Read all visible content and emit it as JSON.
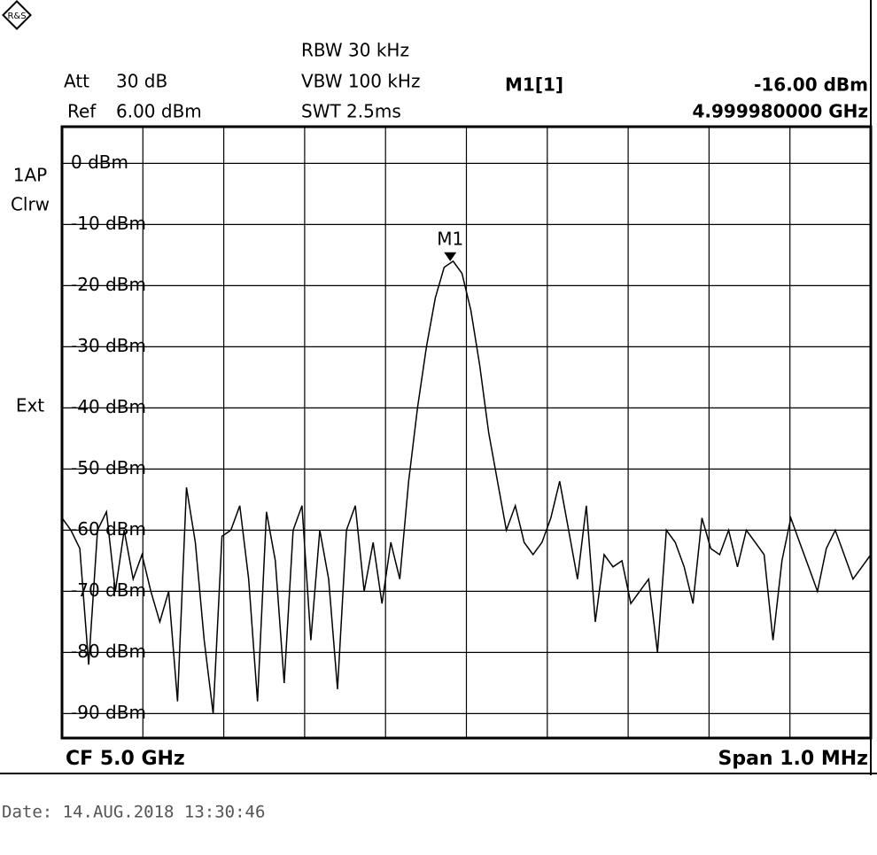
{
  "chart_data": {
    "type": "line",
    "settings": {
      "att_label": "Att",
      "att": "30 dB",
      "ref_label": "Ref",
      "ref": "6.00 dBm",
      "rbw": "RBW 30 kHz",
      "vbw": "VBW 100 kHz",
      "swt": "SWT 2.5ms",
      "trace_mode": "1AP",
      "trace_clear": "Clrw",
      "trigger": "Ext",
      "center": "CF 5.0 GHz",
      "span": "Span 1.0 MHz"
    },
    "date": "Date: 14.AUG.2018  13:30:46",
    "xlim": [
      4.9995,
      5.0005
    ],
    "ylim": [
      -94,
      6
    ],
    "yticks": [
      {
        "value": 0,
        "label": "0 dBm"
      },
      {
        "value": -10,
        "label": "-10 dBm"
      },
      {
        "value": -20,
        "label": "-20 dBm"
      },
      {
        "value": -30,
        "label": "-30 dBm"
      },
      {
        "value": -40,
        "label": "-40 dBm"
      },
      {
        "value": -50,
        "label": "-50 dBm"
      },
      {
        "value": -60,
        "label": "-60 dBm"
      },
      {
        "value": -70,
        "label": "-70 dBm"
      },
      {
        "value": -80,
        "label": "-80 dBm"
      },
      {
        "value": -90,
        "label": "-90 dBm"
      }
    ],
    "grid": true,
    "series": [
      {
        "color": "#000000",
        "values": [
          -58,
          -60,
          -63,
          -82,
          -60,
          -57,
          -70,
          -60,
          -68,
          -64,
          -70,
          -75,
          -70,
          -88,
          -53,
          -62,
          -78,
          -90,
          -61,
          -60,
          -56,
          -68,
          -88,
          -57,
          -65,
          -85,
          -60,
          -56,
          -78,
          -60,
          -68,
          -86,
          -60,
          -56,
          -70,
          -62,
          -72,
          -62,
          -68,
          -52,
          -40,
          -30,
          -22,
          -17,
          -16,
          -18,
          -24,
          -33,
          -44,
          -52,
          -60,
          -56,
          -62,
          -64,
          -62,
          -58,
          -52,
          -60,
          -68,
          -56,
          -75,
          -64,
          -66,
          -65,
          -72,
          -70,
          -68,
          -80,
          -60,
          -62,
          -66,
          -72,
          -58,
          -63,
          -64,
          -60,
          -66,
          -60,
          -62,
          -64,
          -78,
          -65,
          -58,
          -62,
          -66,
          -70,
          -63,
          -60,
          -64,
          -68,
          -66,
          -64
        ]
      }
    ],
    "marker": {
      "label": "M1",
      "readout": "M1[1]",
      "x": 4.99998,
      "y": -16,
      "level_label": "-16.00 dBm",
      "freq_label": "4.999980000 GHz"
    }
  }
}
